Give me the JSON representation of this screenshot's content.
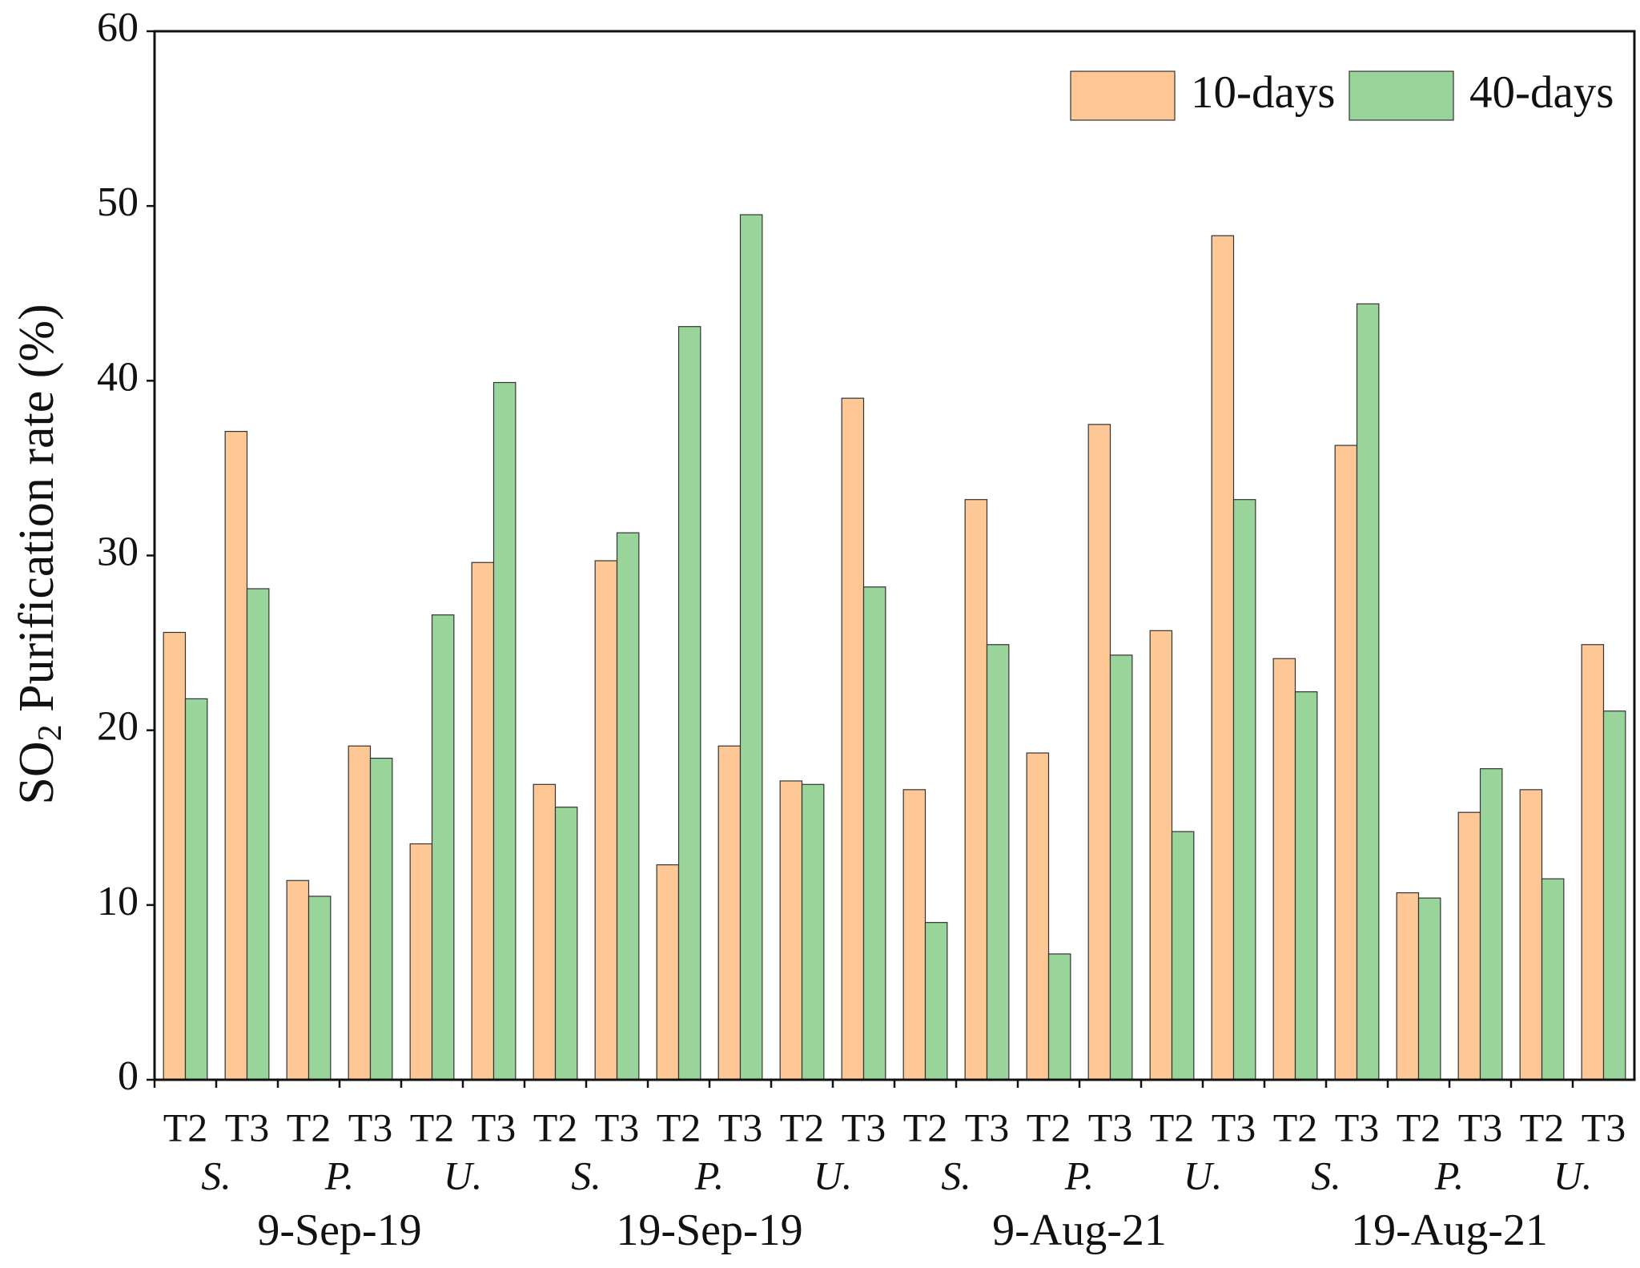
{
  "chart_data": {
    "type": "bar",
    "ylabel": {
      "main": "SO",
      "sub": "2",
      "rest": " Purification rate (%)"
    },
    "categories": [
      "T2",
      "T3",
      "T2",
      "T3",
      "T2",
      "T3",
      "T2",
      "T3",
      "T2",
      "T3",
      "T2",
      "T3",
      "T2",
      "T3",
      "T2",
      "T3",
      "T2",
      "T3",
      "T2",
      "T3",
      "T2",
      "T3",
      "T2",
      "T3"
    ],
    "species": [
      "S.",
      "P.",
      "U.",
      "S.",
      "P.",
      "U.",
      "S.",
      "P.",
      "U.",
      "S.",
      "P.",
      "U."
    ],
    "groups": [
      "9-Sep-19",
      "19-Sep-19",
      "9-Aug-21",
      "19-Aug-21"
    ],
    "series": [
      {
        "name": "10-days",
        "color": "#fdc896",
        "values": [
          25.6,
          37.1,
          11.4,
          19.1,
          13.5,
          29.6,
          16.9,
          29.7,
          12.3,
          19.1,
          17.1,
          39.0,
          16.6,
          33.2,
          18.7,
          37.5,
          25.7,
          48.3,
          24.1,
          36.3,
          10.7,
          15.3,
          16.6,
          24.9
        ]
      },
      {
        "name": "40-days",
        "color": "#99d59a",
        "values": [
          21.8,
          28.1,
          10.5,
          18.4,
          26.6,
          39.9,
          15.6,
          31.3,
          43.1,
          49.5,
          16.9,
          28.2,
          9.0,
          24.9,
          7.2,
          24.3,
          14.2,
          33.2,
          22.2,
          44.4,
          10.4,
          17.8,
          11.5,
          21.1
        ]
      }
    ],
    "ylim": [
      0,
      60
    ],
    "yticks": [
      0,
      10,
      20,
      30,
      40,
      50,
      60
    ],
    "legend": "upper right"
  }
}
